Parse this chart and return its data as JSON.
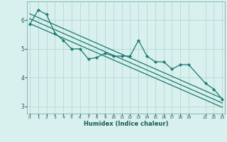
{
  "title": "",
  "xlabel": "Humidex (Indice chaleur)",
  "background_color": "#d8f0ee",
  "line_color": "#1a7a6e",
  "grid_color": "#b8d8d4",
  "data_x": [
    0,
    1,
    2,
    3,
    4,
    5,
    6,
    7,
    8,
    9,
    10,
    11,
    12,
    13,
    14,
    15,
    16,
    17,
    18,
    19,
    21,
    22,
    23
  ],
  "data_y": [
    5.85,
    6.35,
    6.2,
    5.55,
    5.3,
    5.0,
    5.0,
    4.65,
    4.7,
    4.85,
    4.75,
    4.75,
    4.75,
    5.3,
    4.75,
    4.55,
    4.55,
    4.3,
    4.45,
    4.45,
    3.8,
    3.6,
    3.25
  ],
  "trend1_x": [
    0,
    23
  ],
  "trend1_y": [
    6.22,
    3.28
  ],
  "trend2_x": [
    0,
    23
  ],
  "trend2_y": [
    6.05,
    3.12
  ],
  "trend3_x": [
    0,
    23
  ],
  "trend3_y": [
    5.88,
    2.97
  ],
  "ylim": [
    2.75,
    6.65
  ],
  "xlim": [
    -0.3,
    23.3
  ],
  "yticks": [
    3,
    4,
    5,
    6
  ],
  "xticks": [
    0,
    1,
    2,
    3,
    4,
    5,
    6,
    7,
    8,
    9,
    10,
    11,
    12,
    13,
    14,
    15,
    16,
    17,
    18,
    19,
    21,
    22,
    23
  ]
}
